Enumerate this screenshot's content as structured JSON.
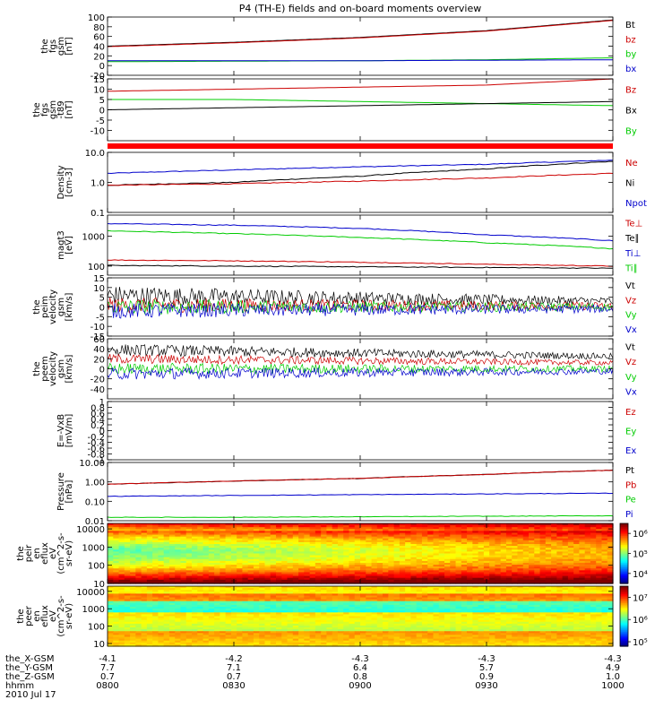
{
  "title": "P4 (TH-E) fields and on-board moments overview",
  "chart_data": [
    {
      "type": "line",
      "ylabel": [
        "the",
        "fgs",
        "gsm",
        "[nT]"
      ],
      "ylim": [
        -20,
        100
      ],
      "yticks": [
        -20,
        0,
        20,
        40,
        60,
        80,
        100
      ],
      "legend": [
        {
          "name": "Bt",
          "color": "#000000"
        },
        {
          "name": "bz",
          "color": "#cc0000"
        },
        {
          "name": "by",
          "color": "#00cc00"
        },
        {
          "name": "bx",
          "color": "#0000cc"
        }
      ],
      "x_minutes": [
        0,
        30,
        60,
        90,
        120
      ],
      "series": [
        {
          "name": "Bt",
          "color": "#000000",
          "values": [
            40,
            48,
            58,
            72,
            94
          ]
        },
        {
          "name": "bz",
          "color": "#cc0000",
          "values": [
            39,
            47,
            57,
            71,
            93
          ]
        },
        {
          "name": "by",
          "color": "#00cc00",
          "values": [
            8,
            9,
            10,
            12,
            16
          ]
        },
        {
          "name": "bx",
          "color": "#0000cc",
          "values": [
            10,
            10,
            10,
            11,
            12
          ]
        }
      ]
    },
    {
      "type": "line",
      "ylabel": [
        "the",
        "fgs",
        "gsm",
        "-t89",
        "[nT]"
      ],
      "ylim": [
        -15,
        15
      ],
      "yticks": [
        -10,
        -5,
        0,
        5,
        10,
        15
      ],
      "legend": [
        {
          "name": "Bz",
          "color": "#cc0000"
        },
        {
          "name": "Bx",
          "color": "#000000"
        },
        {
          "name": "By",
          "color": "#00cc00"
        }
      ],
      "x_minutes": [
        0,
        30,
        60,
        90,
        120
      ],
      "series": [
        {
          "name": "Bz",
          "color": "#cc0000",
          "values": [
            9,
            10,
            11,
            12,
            15
          ]
        },
        {
          "name": "By",
          "color": "#00cc00",
          "values": [
            5,
            5,
            4,
            3,
            2
          ]
        },
        {
          "name": "Bx",
          "color": "#000000",
          "values": [
            0,
            1,
            2,
            3,
            4
          ]
        }
      ]
    },
    {
      "type": "line",
      "scale": "log",
      "ylabel": [
        "Density",
        "[cm-3]"
      ],
      "ylim": [
        0.1,
        10
      ],
      "yticks": [
        0.1,
        1.0,
        10.0
      ],
      "ytick_labels": [
        "0.1",
        "1.0",
        "10.0"
      ],
      "legend": [
        {
          "name": "Ne",
          "color": "#cc0000"
        },
        {
          "name": "Ni",
          "color": "#000000"
        },
        {
          "name": "Npot",
          "color": "#0000cc"
        }
      ],
      "x_minutes": [
        0,
        30,
        60,
        90,
        120
      ],
      "series": [
        {
          "name": "Npot",
          "color": "#0000cc",
          "values": [
            2.0,
            2.6,
            3.3,
            4.0,
            5.5
          ]
        },
        {
          "name": "Ni",
          "color": "#000000",
          "values": [
            0.8,
            1.0,
            1.6,
            2.8,
            5.0
          ]
        },
        {
          "name": "Ne",
          "color": "#cc0000",
          "values": [
            0.8,
            0.9,
            1.1,
            1.4,
            2.0
          ]
        }
      ]
    },
    {
      "type": "line",
      "scale": "log",
      "ylabel": [
        "magt3",
        "[eV]"
      ],
      "ylim": [
        50,
        5000
      ],
      "yticks": [
        100,
        1000
      ],
      "ytick_labels": [
        "100",
        "1000"
      ],
      "legend": [
        {
          "name": "Te⊥",
          "color": "#cc0000"
        },
        {
          "name": "Te∥",
          "color": "#000000"
        },
        {
          "name": "Ti⊥",
          "color": "#0000cc"
        },
        {
          "name": "Ti∥",
          "color": "#00cc00"
        }
      ],
      "x_minutes": [
        0,
        30,
        60,
        90,
        120
      ],
      "series": [
        {
          "name": "Ti⊥",
          "color": "#0000cc",
          "values": [
            2600,
            2300,
            1800,
            1100,
            700
          ]
        },
        {
          "name": "Ti∥",
          "color": "#00cc00",
          "values": [
            1500,
            1200,
            900,
            600,
            380
          ]
        },
        {
          "name": "Te⊥",
          "color": "#cc0000",
          "values": [
            160,
            150,
            135,
            115,
            100
          ]
        },
        {
          "name": "Te∥",
          "color": "#000000",
          "values": [
            105,
            100,
            95,
            90,
            85
          ]
        }
      ]
    },
    {
      "type": "line",
      "ylabel": [
        "the",
        "peim",
        "velocity",
        "gsm",
        "[km/s]"
      ],
      "ylim": [
        -15,
        15
      ],
      "yticks": [
        -15,
        -10,
        -5,
        0,
        5,
        10,
        15
      ],
      "legend": [
        {
          "name": "Vt",
          "color": "#000000"
        },
        {
          "name": "Vz",
          "color": "#cc0000"
        },
        {
          "name": "Vy",
          "color": "#00cc00"
        },
        {
          "name": "Vx",
          "color": "#0000cc"
        }
      ],
      "x_minutes": [
        0,
        120
      ],
      "series": [
        {
          "name": "Vt",
          "color": "#000000",
          "values": [
            6,
            3
          ],
          "noise": [
            5,
            2
          ]
        },
        {
          "name": "Vz",
          "color": "#cc0000",
          "values": [
            1,
            0.5
          ],
          "noise": [
            4,
            2
          ]
        },
        {
          "name": "Vy",
          "color": "#00cc00",
          "values": [
            0,
            0
          ],
          "noise": [
            4,
            2
          ]
        },
        {
          "name": "Vx",
          "color": "#0000cc",
          "values": [
            -2,
            -1
          ],
          "noise": [
            4,
            2
          ]
        }
      ]
    },
    {
      "type": "line",
      "ylabel": [
        "the",
        "peem",
        "velocity",
        "gsm",
        "[km/s]"
      ],
      "ylim": [
        -60,
        60
      ],
      "yticks": [
        -40,
        -20,
        0,
        20,
        40,
        60
      ],
      "legend": [
        {
          "name": "Vt",
          "color": "#000000"
        },
        {
          "name": "Vz",
          "color": "#cc0000"
        },
        {
          "name": "Vy",
          "color": "#00cc00"
        },
        {
          "name": "Vx",
          "color": "#0000cc"
        }
      ],
      "x_minutes": [
        0,
        120
      ],
      "series": [
        {
          "name": "Vt",
          "color": "#000000",
          "values": [
            38,
            25
          ],
          "noise": [
            12,
            6
          ]
        },
        {
          "name": "Vz",
          "color": "#cc0000",
          "values": [
            20,
            12
          ],
          "noise": [
            10,
            5
          ]
        },
        {
          "name": "Vy",
          "color": "#00cc00",
          "values": [
            0,
            0
          ],
          "noise": [
            12,
            6
          ]
        },
        {
          "name": "Vx",
          "color": "#0000cc",
          "values": [
            -10,
            -5
          ],
          "noise": [
            12,
            6
          ]
        }
      ]
    },
    {
      "type": "line",
      "ylabel": [
        "E=-VxB",
        "[mV/m]"
      ],
      "ylim": [
        -1,
        1
      ],
      "yticks": [
        -1.0,
        -0.8,
        -0.6,
        -0.4,
        -0.2,
        0.0,
        0.2,
        0.4,
        0.6,
        0.8,
        1.0
      ],
      "legend": [
        {
          "name": "Ez",
          "color": "#cc0000"
        },
        {
          "name": "Ey",
          "color": "#00cc00"
        },
        {
          "name": "Ex",
          "color": "#0000cc"
        }
      ],
      "series": []
    },
    {
      "type": "line",
      "scale": "log",
      "ylabel": [
        "Pressure",
        "[nPa]"
      ],
      "ylim": [
        0.01,
        10
      ],
      "yticks": [
        0.01,
        0.1,
        1.0,
        10.0
      ],
      "ytick_labels": [
        "0.01",
        "0.10",
        "1.00",
        "10.00"
      ],
      "legend": [
        {
          "name": "Pt",
          "color": "#000000"
        },
        {
          "name": "Pb",
          "color": "#cc0000"
        },
        {
          "name": "Pe",
          "color": "#00cc00"
        },
        {
          "name": "Pi",
          "color": "#0000cc"
        }
      ],
      "x_minutes": [
        0,
        30,
        60,
        90,
        120
      ],
      "series": [
        {
          "name": "Pt",
          "color": "#000000",
          "values": [
            0.75,
            1.1,
            1.5,
            2.4,
            4.0
          ]
        },
        {
          "name": "Pb",
          "color": "#cc0000",
          "values": [
            0.75,
            1.1,
            1.5,
            2.4,
            4.0
          ]
        },
        {
          "name": "Pi",
          "color": "#0000cc",
          "values": [
            0.18,
            0.2,
            0.22,
            0.24,
            0.26
          ]
        },
        {
          "name": "Pe",
          "color": "#00cc00",
          "values": [
            0.015,
            0.015,
            0.016,
            0.017,
            0.018
          ]
        }
      ]
    },
    {
      "type": "heatmap",
      "scale": "log",
      "ylabel": [
        "the",
        "peir",
        "en",
        "eflux",
        "eV",
        "(cm^2-s-",
        "sr-eV)"
      ],
      "ylim": [
        10,
        20000
      ],
      "yticks": [
        10,
        100,
        1000,
        10000
      ],
      "ytick_labels": [
        "10",
        "100",
        "1000",
        "10000"
      ],
      "colorbar_ticks": [
        {
          "label": "10⁴",
          "exp": 4
        },
        {
          "label": "10⁵",
          "exp": 5
        },
        {
          "label": "10⁶",
          "exp": 6
        }
      ],
      "colorbar_range_exp": [
        3.5,
        6.5
      ]
    },
    {
      "type": "heatmap",
      "scale": "log",
      "ylabel": [
        "the",
        "peer",
        "en",
        "eflux",
        "eV",
        "(cm^2-s-",
        "sr-eV)"
      ],
      "ylim": [
        7,
        20000
      ],
      "yticks": [
        10,
        100,
        1000,
        10000
      ],
      "ytick_labels": [
        "10",
        "100",
        "1000",
        "10000"
      ],
      "colorbar_ticks": [
        {
          "label": "10⁵",
          "exp": 5
        },
        {
          "label": "10⁶",
          "exp": 6
        },
        {
          "label": "10⁷",
          "exp": 7
        }
      ],
      "colorbar_range_exp": [
        4.8,
        7.5
      ]
    }
  ],
  "x_axis": {
    "rows": [
      {
        "label": "the_X-GSM",
        "values": [
          "-4.1",
          "-4.2",
          "-4.3",
          "-4.3",
          "-4.3"
        ]
      },
      {
        "label": "the_Y-GSM",
        "values": [
          "7.7",
          "7.1",
          "6.4",
          "5.7",
          "4.9"
        ]
      },
      {
        "label": "the_Z-GSM",
        "values": [
          "0.7",
          "0.7",
          "0.8",
          "0.9",
          "1.0"
        ]
      },
      {
        "label": "hhmm",
        "values": [
          "0800",
          "0830",
          "0900",
          "0930",
          "1000"
        ]
      }
    ],
    "date": "2010 Jul 17"
  },
  "colors": {
    "black": "#000000",
    "red": "#cc0000",
    "green": "#00cc00",
    "blue": "#0000cc",
    "flag": "#ff0000"
  }
}
